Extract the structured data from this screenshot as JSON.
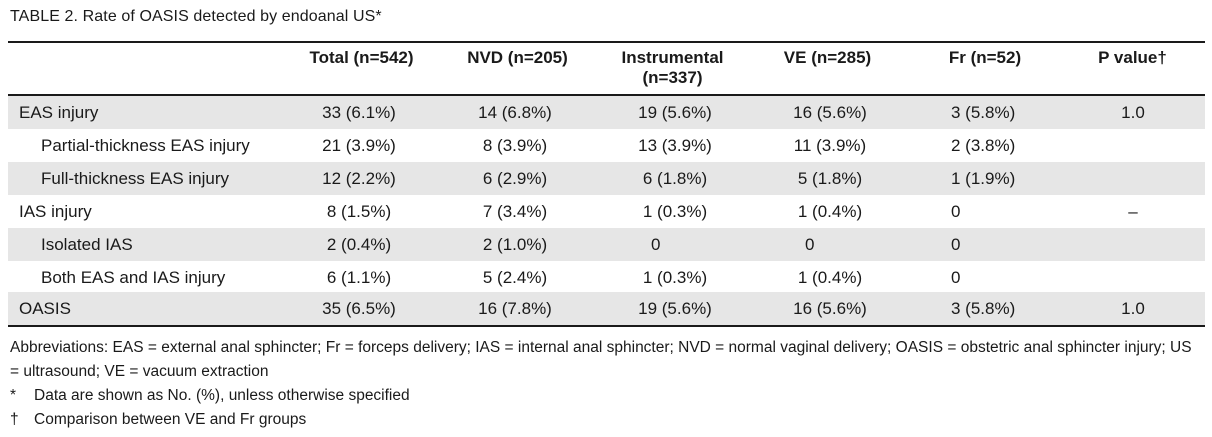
{
  "title": "TABLE 2.  Rate of OASIS detected by endoanal US*",
  "headers": {
    "total": "Total (n=542)",
    "nvd": "NVD (n=205)",
    "instrumental": "Instrumental (n=337)",
    "ve": "VE (n=285)",
    "fr": "Fr (n=52)",
    "p": "P value†"
  },
  "rows": [
    {
      "label": "EAS injury",
      "total": "33 (6.1%)",
      "nvd": "14 (6.8%)",
      "instrumental": "19 (5.6%)",
      "ve": "16 (5.6%)",
      "fr": "3 (5.8%)",
      "p": "1.0"
    },
    {
      "label": "Partial-thickness EAS injury",
      "total": "21 (3.9%)",
      "nvd": "8 (3.9%)",
      "instrumental": "13 (3.9%)",
      "ve": "11 (3.9%)",
      "fr": "2 (3.8%)",
      "p": ""
    },
    {
      "label": "Full-thickness EAS injury",
      "total": "12 (2.2%)",
      "nvd": "6 (2.9%)",
      "instrumental": "6 (1.8%)",
      "ve": "5 (1.8%)",
      "fr": "1 (1.9%)",
      "p": ""
    },
    {
      "label": "IAS injury",
      "total": "8 (1.5%)",
      "nvd": "7 (3.4%)",
      "instrumental": "1 (0.3%)",
      "ve": "1 (0.4%)",
      "fr": "0",
      "p": "–"
    },
    {
      "label": "Isolated IAS",
      "total": "2 (0.4%)",
      "nvd": "2 (1.0%)",
      "instrumental": "0",
      "ve": "0",
      "fr": "0",
      "p": ""
    },
    {
      "label": "Both EAS and IAS injury",
      "total": "6 (1.1%)",
      "nvd": "5 (2.4%)",
      "instrumental": "1 (0.3%)",
      "ve": "1 (0.4%)",
      "fr": "0",
      "p": ""
    },
    {
      "label": "OASIS",
      "total": "35 (6.5%)",
      "nvd": "16 (7.8%)",
      "instrumental": "19 (5.6%)",
      "ve": "16 (5.6%)",
      "fr": "3 (5.8%)",
      "p": "1.0"
    }
  ],
  "notes": {
    "abbreviations": "Abbreviations: EAS = external anal sphincter; Fr = forceps delivery; IAS = internal anal sphincter; NVD = normal vaginal delivery; OASIS = obstetric anal sphincter injury; US = ultrasound; VE = vacuum extraction",
    "fn1_mark": "*",
    "fn1_text": "Data are shown as No. (%), unless otherwise specified",
    "fn2_mark": "†",
    "fn2_text": "Comparison between VE and Fr groups"
  }
}
